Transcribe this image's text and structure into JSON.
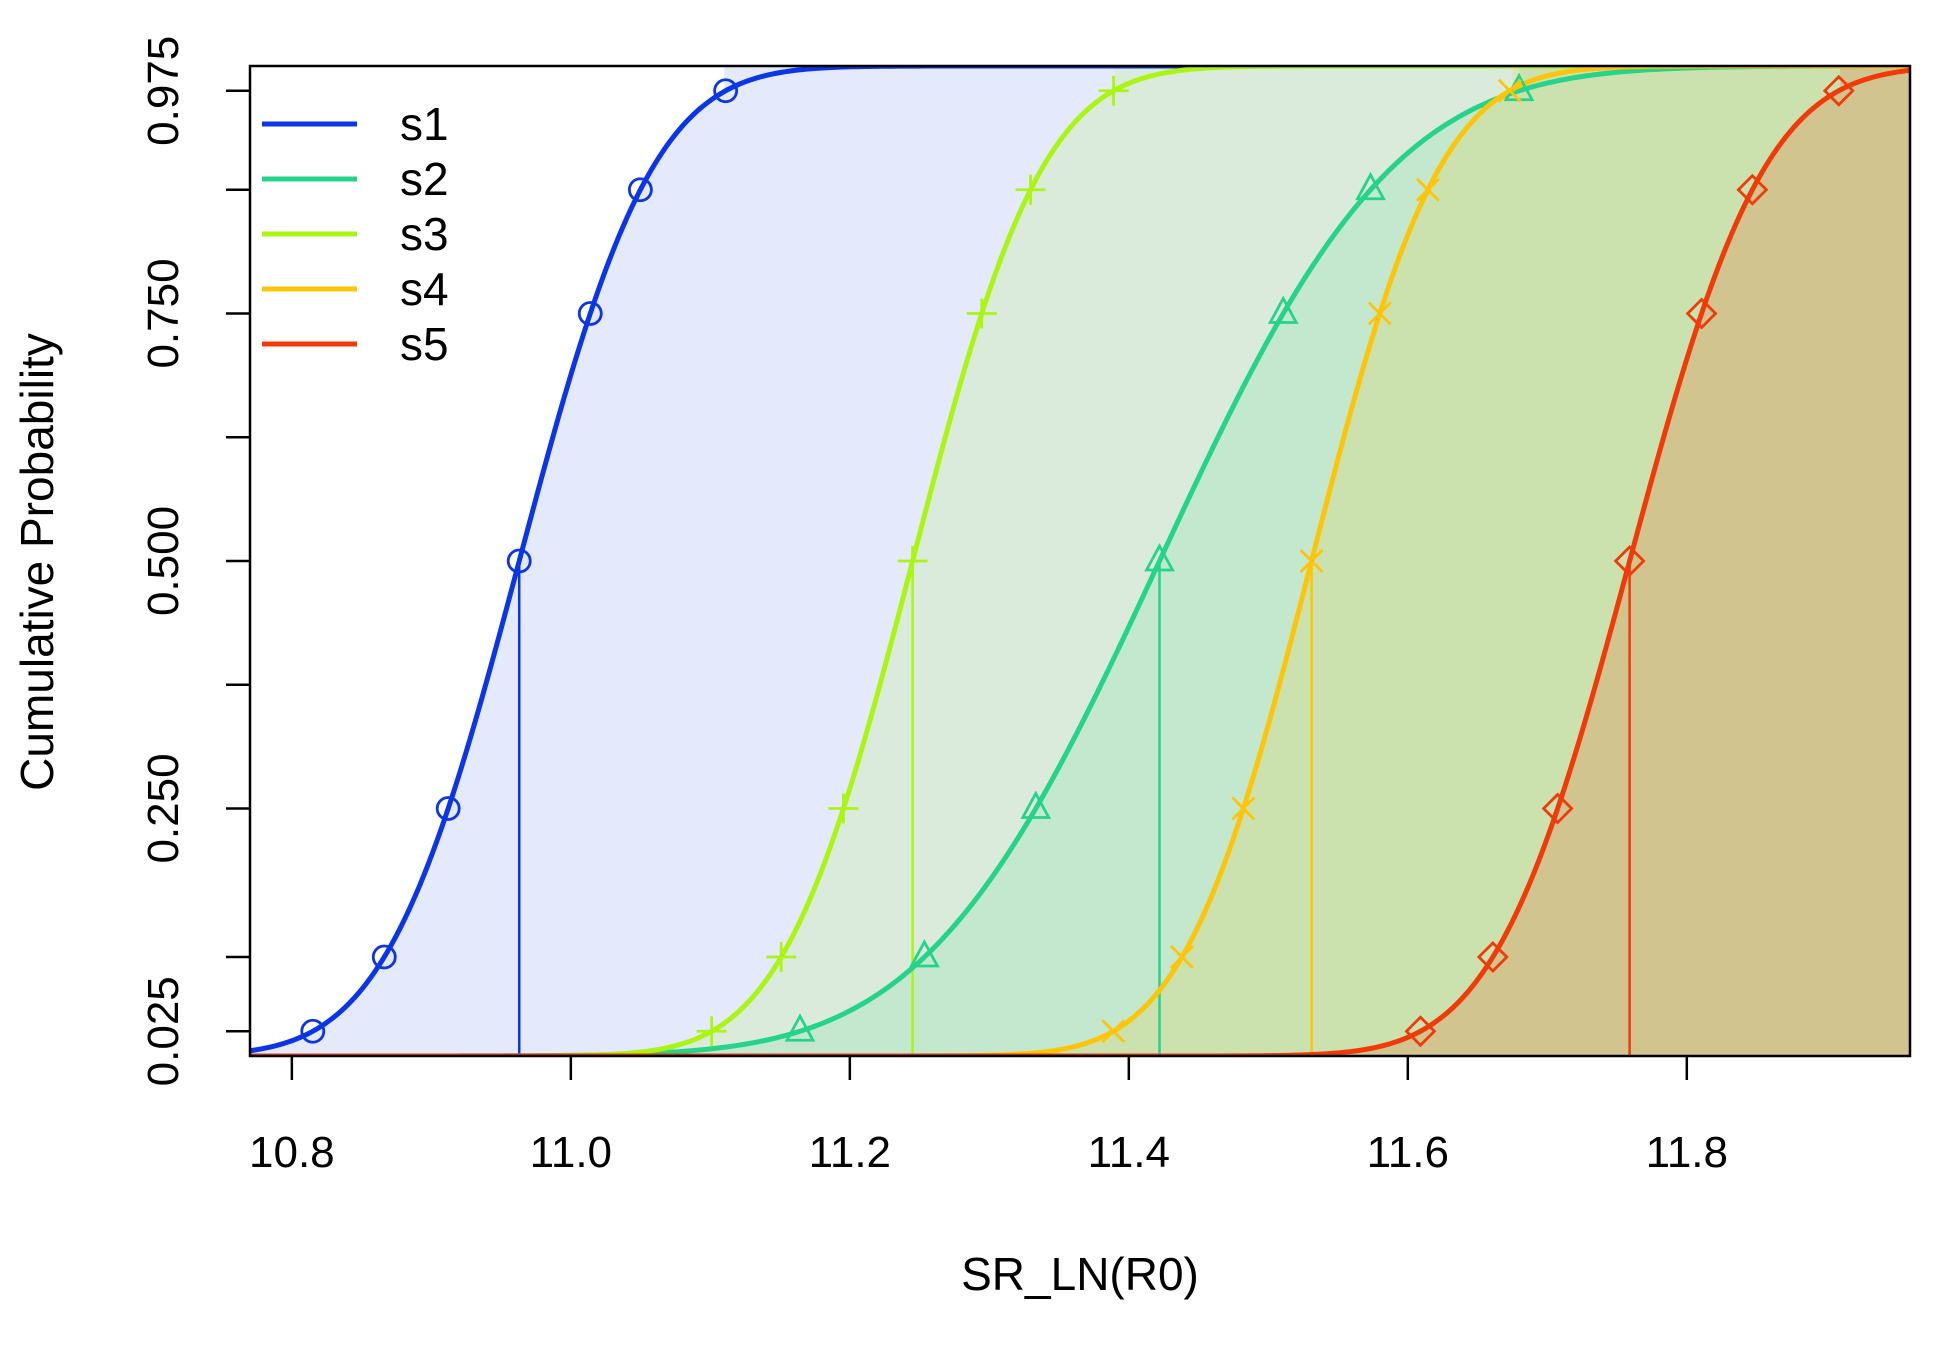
{
  "chart_data": {
    "type": "line",
    "title": "",
    "xlabel": "SR_LN(R0)",
    "ylabel": "Cumulative Probability",
    "xlim": [
      10.77,
      11.96
    ],
    "ylim": [
      0.0,
      1.0
    ],
    "x_ticks": [
      10.8,
      11.0,
      11.2,
      11.4,
      11.6,
      11.8
    ],
    "x_tick_labels": [
      "10.8",
      "11.0",
      "11.2",
      "11.4",
      "11.6",
      "11.8"
    ],
    "y_ticks": [
      0.025,
      0.1,
      0.25,
      0.375,
      0.5,
      0.625,
      0.75,
      0.875,
      0.975
    ],
    "y_tick_labels": [
      "0.025",
      "",
      "0.250",
      "",
      "0.500",
      "",
      "0.750",
      "",
      "0.975"
    ],
    "legend_position": "top-left",
    "grid": false,
    "marker_probabilities": [
      0.025,
      0.1,
      0.25,
      0.5,
      0.75,
      0.875,
      0.975
    ],
    "series": [
      {
        "name": "s1",
        "color": "#0a35e8",
        "marker": "circle",
        "mean": 10.963,
        "sd": 0.0755,
        "shade_end": 11.11,
        "shade_opacity": 0.11
      },
      {
        "name": "s2",
        "color": "#25d38b",
        "marker": "triangle",
        "mean": 11.422,
        "sd": 0.1315,
        "shade_end": 11.68,
        "shade_opacity": 0.14
      },
      {
        "name": "s3",
        "color": "#aaf513",
        "marker": "plus",
        "mean": 11.245,
        "sd": 0.0735,
        "shade_end": 11.39,
        "shade_opacity": 0.14
      },
      {
        "name": "s4",
        "color": "#fdc50a",
        "marker": "cross",
        "mean": 11.531,
        "sd": 0.0725,
        "shade_end": 11.675,
        "shade_opacity": 0.16
      },
      {
        "name": "s5",
        "color": "#f03b08",
        "marker": "diamond",
        "mean": 11.759,
        "sd": 0.0765,
        "shade_end": 11.91,
        "shade_opacity": 0.18
      }
    ]
  }
}
